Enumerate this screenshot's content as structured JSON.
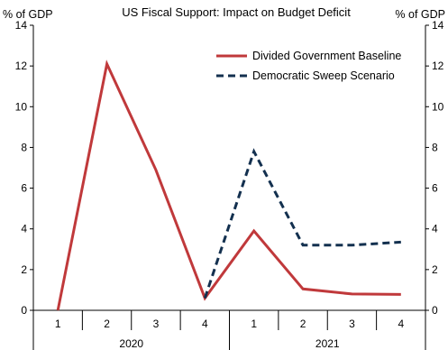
{
  "chart_data": {
    "type": "line",
    "title": "US Fiscal Support: Impact on Budget Deficit",
    "ylabel_left": "% of GDP",
    "ylabel_right": "% of GDP",
    "ylim": [
      0,
      14
    ],
    "yticks": [
      0,
      2,
      4,
      6,
      8,
      10,
      12,
      14
    ],
    "categories": [
      "1",
      "2",
      "3",
      "4",
      "1",
      "2",
      "3",
      "4"
    ],
    "groups": [
      {
        "label": "2020",
        "start": 0,
        "end": 3
      },
      {
        "label": "2021",
        "start": 4,
        "end": 7
      }
    ],
    "series": [
      {
        "name": "Divided Government Baseline",
        "style": "solid",
        "color": "#c0393b",
        "values": [
          0,
          12.1,
          6.9,
          0.6,
          3.9,
          1.05,
          0.8,
          0.78
        ]
      },
      {
        "name": "Democratic Sweep Scenario",
        "style": "dashed",
        "color": "#13304f",
        "values": [
          null,
          null,
          null,
          0.6,
          7.8,
          3.2,
          3.2,
          3.35
        ]
      }
    ],
    "legend_position": "top-right",
    "grid": false
  }
}
